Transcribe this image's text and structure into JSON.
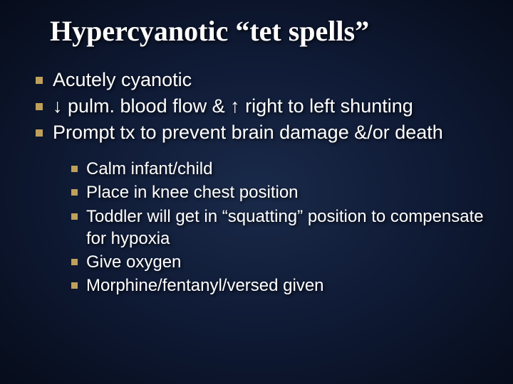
{
  "title": "Hypercyanotic “tet spells”",
  "title_fontsize": 40,
  "title_color": "#ffffff",
  "title_font": "Times New Roman",
  "body_font": "Arial",
  "body_color": "#ffffff",
  "main_bullet_color": "#bfa05a",
  "sub_bullet_color": "#bfa05a",
  "main_fontsize": 27,
  "sub_fontsize": 24,
  "background_gradient": {
    "center": "#1a2a4a",
    "mid": "#0f1a35",
    "edge": "#060c1a"
  },
  "main_items": [
    "Acutely cyanotic",
    "↓ pulm. blood flow & ↑ right to left shunting",
    "Prompt tx to prevent brain damage &/or death"
  ],
  "sub_items": [
    "Calm infant/child",
    "Place in knee chest position",
    "Toddler will get in “squatting” position to compensate for hypoxia",
    "Give oxygen",
    "Morphine/fentanyl/versed given"
  ]
}
